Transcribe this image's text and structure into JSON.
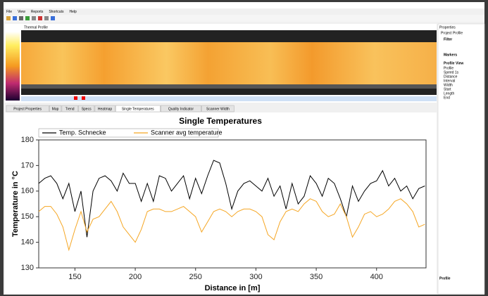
{
  "menu": [
    "File",
    "View",
    "Reports",
    "Shortcuts",
    "Help"
  ],
  "panel_label": "Thermal Profile",
  "tabs": [
    "Project Properties",
    "Map",
    "Trend",
    "Specs",
    "Heatmap",
    "Single Temperatures",
    "Quality Indicator",
    "Scanner Width"
  ],
  "properties": {
    "title": "Properties",
    "subtitle": "Project Profile",
    "sections": [
      "Filter",
      "Markers",
      "Profile View"
    ],
    "fields": [
      "Profile",
      "Speed 1s",
      "Distance",
      "Interval",
      "Width",
      "Start",
      "Length",
      "End"
    ],
    "footer": "Profile"
  },
  "chart_data": {
    "type": "line",
    "title": "Single Temperatures",
    "xlabel": "Distance in [m]",
    "ylabel": "Temperature in °C",
    "x": [
      120,
      125,
      130,
      135,
      140,
      145,
      150,
      155,
      160,
      165,
      170,
      175,
      180,
      185,
      190,
      195,
      200,
      205,
      210,
      215,
      220,
      225,
      230,
      235,
      240,
      245,
      250,
      255,
      260,
      265,
      270,
      275,
      280,
      285,
      290,
      295,
      300,
      305,
      310,
      315,
      320,
      325,
      330,
      335,
      340,
      345,
      350,
      355,
      360,
      365,
      370,
      375,
      380,
      385,
      390,
      395,
      400,
      405,
      410,
      415,
      420,
      425,
      430,
      435,
      440
    ],
    "series": [
      {
        "name": "Temp. Schnecke",
        "color": "#000000",
        "values": [
          163,
          165,
          166,
          163,
          157,
          163,
          152,
          160,
          142,
          160,
          165,
          166,
          164,
          160,
          167,
          163,
          163,
          156,
          163,
          156,
          166,
          165,
          160,
          163,
          166,
          157,
          165,
          159,
          166,
          172,
          171,
          163,
          153,
          160,
          163,
          164,
          162,
          160,
          165,
          158,
          162,
          153,
          163,
          155,
          158,
          166,
          163,
          158,
          165,
          163,
          157,
          150,
          162,
          156,
          160,
          163,
          164,
          168,
          162,
          165,
          160,
          162,
          157,
          161,
          162
        ]
      },
      {
        "name": "Scanner avg temperature",
        "color": "#f5a623",
        "values": [
          152,
          154,
          154,
          151,
          146,
          137,
          145,
          152,
          144,
          149,
          150,
          153,
          156,
          152,
          146,
          143,
          140,
          145,
          152,
          153,
          153,
          152,
          152,
          153,
          154,
          152,
          150,
          144,
          148,
          152,
          153,
          152,
          150,
          152,
          153,
          153,
          152,
          150,
          143,
          141,
          148,
          152,
          153,
          152,
          155,
          157,
          156,
          152,
          150,
          151,
          155,
          150,
          142,
          146,
          151,
          152,
          150,
          151,
          153,
          156,
          157,
          155,
          152,
          146,
          147
        ]
      }
    ],
    "xlim": [
      120,
      441
    ],
    "xticks": [
      150,
      200,
      250,
      300,
      350,
      400
    ],
    "ylim": [
      130,
      180
    ],
    "yticks": [
      130,
      140,
      150,
      160,
      170,
      180
    ]
  }
}
